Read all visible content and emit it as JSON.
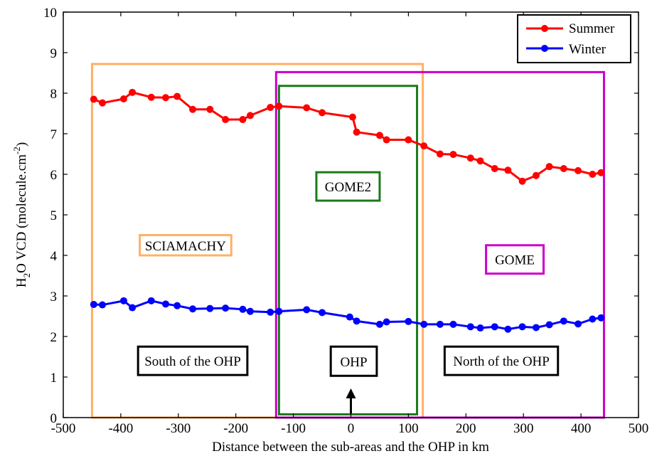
{
  "chart_data": {
    "type": "line",
    "title": "",
    "xlabel": "Distance between the sub-areas and the OHP in km",
    "ylabel_base": "H",
    "ylabel_sub": "2",
    "ylabel_mid": "O VCD (molecule.cm",
    "ylabel_sup": "-2",
    "ylabel_end": ")",
    "xlim": [
      -500,
      500
    ],
    "ylim": [
      0,
      10
    ],
    "xticks": [
      -500,
      -400,
      -300,
      -200,
      -100,
      0,
      100,
      200,
      300,
      400,
      500
    ],
    "yticks": [
      0,
      1,
      2,
      3,
      4,
      5,
      6,
      7,
      8,
      9,
      10
    ],
    "grid": false,
    "legend_position": "top-right",
    "series": [
      {
        "name": "Summer",
        "color": "#ff0000",
        "x": [
          -447,
          -432,
          -395,
          -380,
          -347,
          -322,
          -302,
          -275,
          -245,
          -218,
          -188,
          -175,
          -140,
          -125,
          -77,
          -50,
          3,
          10,
          50,
          62,
          100,
          127,
          155,
          178,
          208,
          225,
          250,
          273,
          298,
          322,
          345,
          370,
          395,
          420,
          435
        ],
        "y": [
          7.85,
          7.76,
          7.86,
          8.02,
          7.9,
          7.89,
          7.92,
          7.6,
          7.6,
          7.35,
          7.35,
          7.45,
          7.65,
          7.68,
          7.64,
          7.52,
          7.41,
          7.04,
          6.96,
          6.85,
          6.85,
          6.7,
          6.5,
          6.49,
          6.4,
          6.33,
          6.14,
          6.1,
          5.83,
          5.97,
          6.19,
          6.14,
          6.09,
          6.0,
          6.04
        ]
      },
      {
        "name": "Winter",
        "color": "#0000ff",
        "x": [
          -447,
          -432,
          -395,
          -380,
          -347,
          -322,
          -302,
          -275,
          -245,
          -218,
          -188,
          -175,
          -140,
          -125,
          -77,
          -50,
          -2,
          10,
          50,
          62,
          100,
          127,
          155,
          178,
          208,
          225,
          250,
          273,
          298,
          322,
          345,
          370,
          395,
          420,
          435
        ],
        "y": [
          2.79,
          2.78,
          2.88,
          2.71,
          2.88,
          2.8,
          2.76,
          2.68,
          2.69,
          2.7,
          2.67,
          2.62,
          2.6,
          2.62,
          2.66,
          2.59,
          2.48,
          2.38,
          2.3,
          2.36,
          2.37,
          2.3,
          2.3,
          2.3,
          2.24,
          2.21,
          2.24,
          2.18,
          2.24,
          2.22,
          2.29,
          2.38,
          2.31,
          2.43,
          2.46
        ]
      }
    ],
    "regions": [
      {
        "label": "SCIAMACHY",
        "color": "#ffb066",
        "x": [
          -450,
          125
        ],
        "y": [
          0,
          8.72
        ]
      },
      {
        "label": "GOME",
        "color": "#cc00cc",
        "x": [
          -130,
          440
        ],
        "y": [
          0,
          8.52
        ]
      },
      {
        "label": "GOME2",
        "color": "#1a7a1a",
        "x": [
          -125,
          115
        ],
        "y": [
          0.08,
          8.18
        ]
      }
    ],
    "region_labels": [
      {
        "text": "SCIAMACHY",
        "color": "#ffb066",
        "x": [
          -367,
          -208
        ],
        "y": [
          4.0,
          4.5
        ]
      },
      {
        "text": "GOME2",
        "color": "#1a7a1a",
        "x": [
          -60,
          50
        ],
        "y": [
          5.35,
          6.05
        ]
      },
      {
        "text": "GOME",
        "color": "#cc00cc",
        "x": [
          235,
          335
        ],
        "y": [
          3.55,
          4.25
        ]
      }
    ],
    "annotations": [
      {
        "text": "South of the OHP",
        "x": [
          -370,
          -180
        ],
        "y": [
          1.05,
          1.75
        ]
      },
      {
        "text": "OHP",
        "x": [
          -35,
          45
        ],
        "y": [
          1.03,
          1.75
        ]
      },
      {
        "text": "North of the OHP",
        "x": [
          163,
          360
        ],
        "y": [
          1.05,
          1.75
        ]
      }
    ],
    "arrow": {
      "x": 0,
      "y_from": 0.1,
      "y_to": 0.72
    }
  }
}
